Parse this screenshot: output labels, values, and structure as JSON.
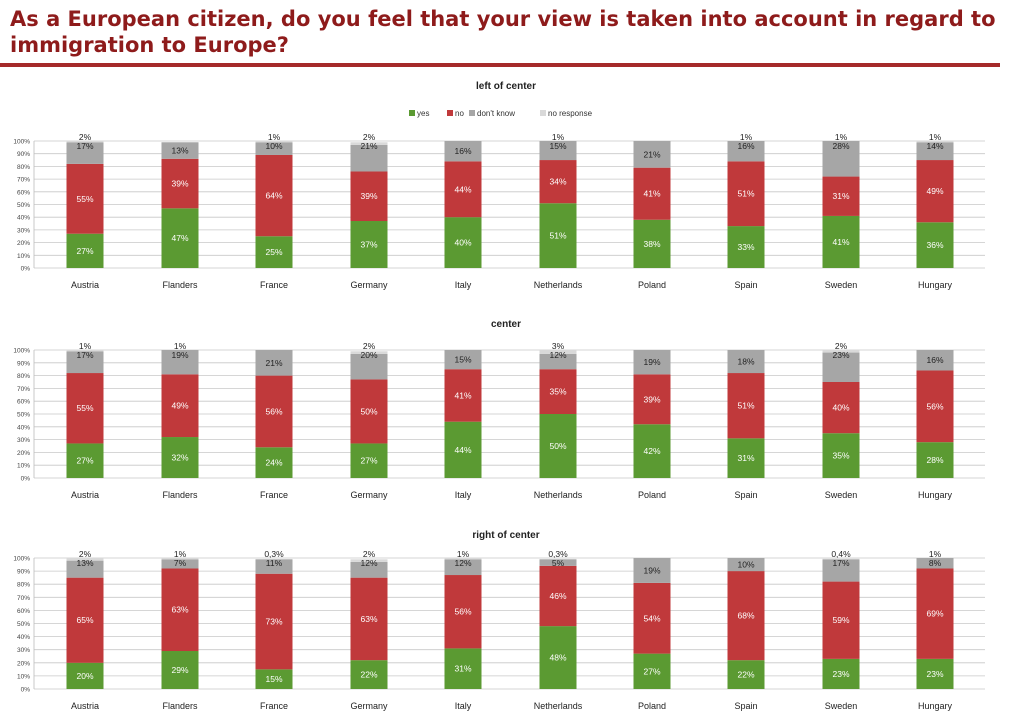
{
  "page": {
    "title": "As a European citizen, do you feel that your view is taken into account in regard to immigration to Europe?"
  },
  "colors": {
    "yes": "#5b9a32",
    "no": "#c0393b",
    "dont_know": "#a6a6a6",
    "no_response": "#d9d9d9"
  },
  "chart_data": [
    {
      "type": "bar",
      "stacked": true,
      "title": "left of center",
      "legend": [
        "yes",
        "no",
        "don't know",
        "no response"
      ],
      "legend_position": "top",
      "categories": [
        "Austria",
        "Flanders",
        "France",
        "Germany",
        "Italy",
        "Netherlands",
        "Poland",
        "Spain",
        "Sweden",
        "Hungary"
      ],
      "yticks": [
        "0%",
        "10%",
        "20%",
        "30%",
        "40%",
        "50%",
        "60%",
        "70%",
        "80%",
        "90%",
        "100%"
      ],
      "ylim": [
        0,
        100
      ],
      "grid": true,
      "series": [
        {
          "name": "yes",
          "values": [
            27,
            47,
            25,
            37,
            40,
            51,
            38,
            33,
            41,
            36
          ],
          "labels": [
            "27%",
            "47%",
            "25%",
            "37%",
            "40%",
            "51%",
            "38%",
            "33%",
            "41%",
            "36%"
          ]
        },
        {
          "name": "no",
          "values": [
            55,
            39,
            64,
            39,
            44,
            34,
            41,
            51,
            31,
            49
          ],
          "labels": [
            "55%",
            "39%",
            "64%",
            "39%",
            "44%",
            "34%",
            "41%",
            "51%",
            "31%",
            "49%"
          ]
        },
        {
          "name": "don't know",
          "values": [
            17,
            13,
            10,
            21,
            16,
            15,
            21,
            16,
            28,
            14
          ],
          "labels": [
            "17%",
            "13%",
            "10%",
            "21%",
            "16%",
            "15%",
            "21%",
            "16%",
            "28%",
            "14%"
          ]
        },
        {
          "name": "no response",
          "values": [
            2,
            0,
            1,
            2,
            0,
            1,
            0,
            1,
            1,
            1
          ],
          "labels": [
            "2%",
            "",
            "1%",
            "2%",
            "",
            "1%",
            "",
            "1%",
            "1%",
            "1%"
          ]
        }
      ]
    },
    {
      "type": "bar",
      "stacked": true,
      "title": "center",
      "categories": [
        "Austria",
        "Flanders",
        "France",
        "Germany",
        "Italy",
        "Netherlands",
        "Poland",
        "Spain",
        "Sweden",
        "Hungary"
      ],
      "yticks": [
        "0%",
        "10%",
        "20%",
        "30%",
        "40%",
        "50%",
        "60%",
        "70%",
        "80%",
        "90%",
        "100%"
      ],
      "ylim": [
        0,
        100
      ],
      "grid": true,
      "series": [
        {
          "name": "yes",
          "values": [
            27,
            32,
            24,
            27,
            44,
            50,
            42,
            31,
            35,
            28
          ],
          "labels": [
            "27%",
            "32%",
            "24%",
            "27%",
            "44%",
            "50%",
            "42%",
            "31%",
            "35%",
            "28%"
          ]
        },
        {
          "name": "no",
          "values": [
            55,
            49,
            56,
            50,
            41,
            35,
            39,
            51,
            40,
            56
          ],
          "labels": [
            "55%",
            "49%",
            "56%",
            "50%",
            "41%",
            "35%",
            "39%",
            "51%",
            "40%",
            "56%"
          ]
        },
        {
          "name": "don't know",
          "values": [
            17,
            19,
            21,
            20,
            15,
            12,
            19,
            18,
            23,
            16
          ],
          "labels": [
            "17%",
            "19%",
            "21%",
            "20%",
            "15%",
            "12%",
            "19%",
            "18%",
            "23%",
            "16%"
          ]
        },
        {
          "name": "no response",
          "values": [
            1,
            1,
            0,
            2,
            0,
            3,
            0,
            0,
            2,
            0
          ],
          "labels": [
            "1%",
            "1%",
            "",
            "2%",
            "",
            "3%",
            "",
            "",
            "2%",
            ""
          ]
        }
      ]
    },
    {
      "type": "bar",
      "stacked": true,
      "title": "right of center",
      "categories": [
        "Austria",
        "Flanders",
        "France",
        "Germany",
        "Italy",
        "Netherlands",
        "Poland",
        "Spain",
        "Sweden",
        "Hungary"
      ],
      "yticks": [
        "0%",
        "10%",
        "20%",
        "30%",
        "40%",
        "50%",
        "60%",
        "70%",
        "80%",
        "90%",
        "100%"
      ],
      "ylim": [
        0,
        100
      ],
      "grid": true,
      "series": [
        {
          "name": "yes",
          "values": [
            20,
            29,
            15,
            22,
            31,
            48,
            27,
            22,
            23,
            23
          ],
          "labels": [
            "20%",
            "29%",
            "15%",
            "22%",
            "31%",
            "48%",
            "27%",
            "22%",
            "23%",
            "23%"
          ]
        },
        {
          "name": "no",
          "values": [
            65,
            63,
            73,
            63,
            56,
            46,
            54,
            68,
            59,
            69
          ],
          "labels": [
            "65%",
            "63%",
            "73%",
            "63%",
            "56%",
            "46%",
            "54%",
            "68%",
            "59%",
            "69%"
          ]
        },
        {
          "name": "don't know",
          "values": [
            13,
            7,
            11,
            12,
            12,
            5,
            19,
            10,
            17,
            8
          ],
          "labels": [
            "13%",
            "7%",
            "11%",
            "12%",
            "12%",
            "5%",
            "19%",
            "10%",
            "17%",
            "8%"
          ]
        },
        {
          "name": "no response",
          "values": [
            2,
            1,
            0.3,
            2,
            1,
            0.3,
            0,
            0,
            0.4,
            1
          ],
          "labels": [
            "2%",
            "1%",
            "0,3%",
            "2%",
            "1%",
            "0,3%",
            "",
            "",
            "0,4%",
            "1%"
          ]
        }
      ]
    }
  ]
}
